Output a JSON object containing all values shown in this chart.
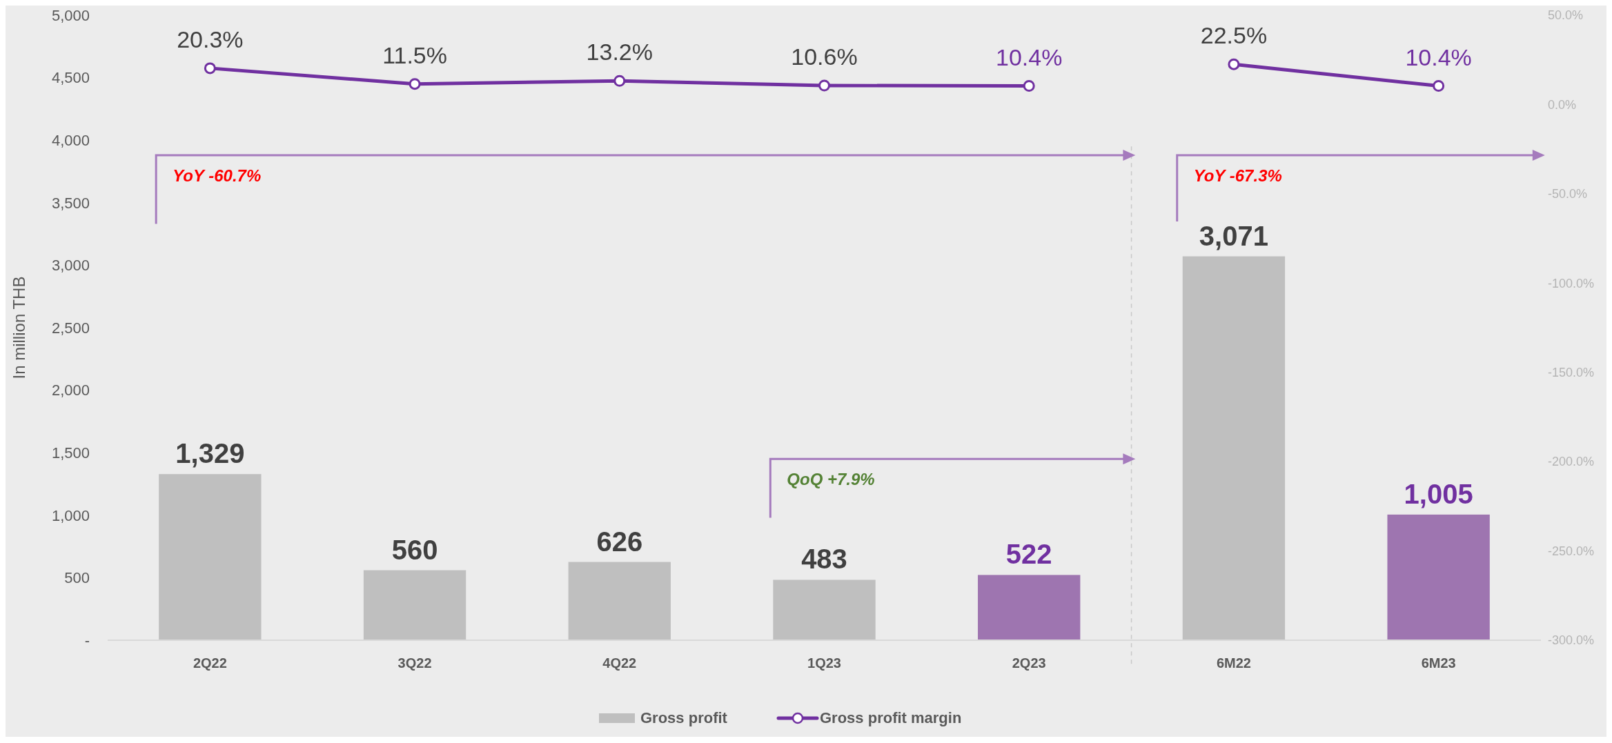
{
  "chart_data": {
    "type": "bar",
    "ylabel": "In million THB",
    "categories": [
      "2Q22",
      "3Q22",
      "4Q22",
      "1Q23",
      "2Q23",
      "6M22",
      "6M23"
    ],
    "series": [
      {
        "name": "Gross profit",
        "color": "#bfbfbf",
        "colors": [
          "#bfbfbf",
          "#bfbfbf",
          "#bfbfbf",
          "#bfbfbf",
          "#9e75b0",
          "#bfbfbf",
          "#9e75b0"
        ],
        "values": [
          1329,
          560,
          626,
          483,
          522,
          3071,
          1005
        ],
        "value_labels": [
          "1,329",
          "560",
          "626",
          "483",
          "522",
          "3,071",
          "1,005"
        ]
      },
      {
        "name": "Gross profit margin",
        "type": "line",
        "axis": "y2",
        "color": "#7030a0",
        "values": [
          20.3,
          11.5,
          13.2,
          10.6,
          10.4,
          null,
          null
        ],
        "value_labels": [
          "20.3%",
          "11.5%",
          "13.2%",
          "10.6%",
          "10.4%",
          null,
          null
        ]
      },
      {
        "type": "line",
        "axis": "y2",
        "color": "#7030a0",
        "values": [
          null,
          null,
          null,
          null,
          null,
          22.5,
          10.4
        ],
        "value_labels": [
          null,
          null,
          null,
          null,
          null,
          "22.5%",
          "10.4%"
        ]
      }
    ],
    "ylim": [
      0,
      5000
    ],
    "yticks": [
      {
        "value": 0,
        "label": "-"
      },
      {
        "value": 500,
        "label": "500"
      },
      {
        "value": 1000,
        "label": "1,000"
      },
      {
        "value": 1500,
        "label": "1,500"
      },
      {
        "value": 2000,
        "label": "2,000"
      },
      {
        "value": 2500,
        "label": "2,500"
      },
      {
        "value": 3000,
        "label": "3,000"
      },
      {
        "value": 3500,
        "label": "3,500"
      },
      {
        "value": 4000,
        "label": "4,000"
      },
      {
        "value": 4500,
        "label": "4,500"
      },
      {
        "value": 5000,
        "label": "5,000"
      }
    ],
    "y2lim": [
      -300,
      50
    ],
    "y2ticks": [
      {
        "value": -300,
        "label": "-300.0%"
      },
      {
        "value": -250,
        "label": "-250.0%"
      },
      {
        "value": -200,
        "label": "-200.0%"
      },
      {
        "value": -150,
        "label": "-150.0%"
      },
      {
        "value": -100,
        "label": "-100.0%"
      },
      {
        "value": -50,
        "label": "-50.0%"
      },
      {
        "value": 0,
        "label": "0.0%"
      },
      {
        "value": 50,
        "label": "50.0%"
      }
    ],
    "marker": "circle",
    "grid": false,
    "legend": "bottom",
    "annotations": [
      "YoY -60.7%",
      "QoQ +7.9%",
      "YoY -67.3%"
    ]
  }
}
